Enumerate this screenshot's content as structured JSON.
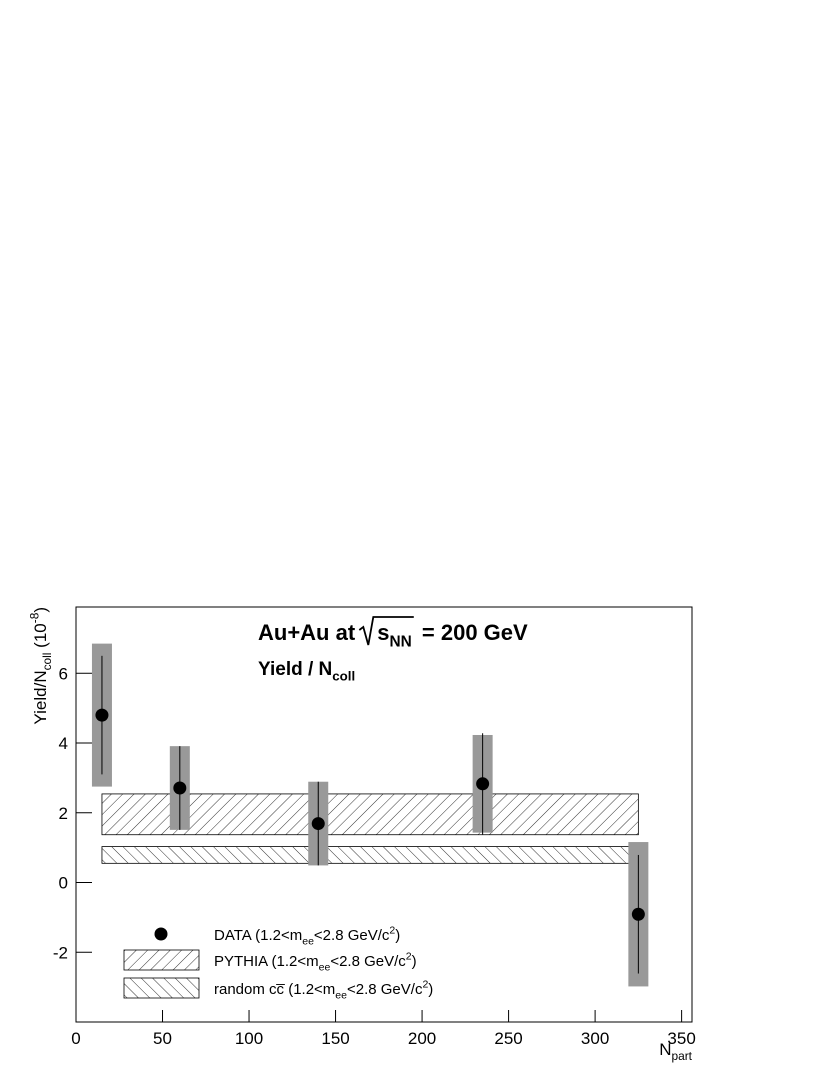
{
  "chart_data": {
    "type": "scatter",
    "title": [
      "Au+Au at ",
      "s",
      "NN",
      " = 200 GeV"
    ],
    "subtitle": [
      "Yield / N",
      "coll"
    ],
    "y_label": [
      "Yield/N",
      "coll",
      " (10",
      "-8",
      ")"
    ],
    "x_label": [
      "N",
      "part"
    ],
    "xlim": [
      0,
      356
    ],
    "ylim": [
      -4,
      7.9
    ],
    "xticks": [
      0,
      50,
      100,
      150,
      200,
      250,
      300,
      350
    ],
    "yticks": [
      -2,
      0,
      2,
      4,
      6
    ],
    "series": [
      {
        "type": "points",
        "name": [
          "DATA (1.2<m",
          "ee",
          "<2.8 GeV/c",
          "2",
          ")"
        ],
        "color": "#000000",
        "sys_color": "#999999",
        "x": [
          15,
          60,
          140,
          235,
          325
        ],
        "values": [
          4.8,
          2.71,
          1.69,
          2.83,
          -0.91
        ],
        "errors": [
          1.7,
          1.2,
          1.2,
          1.45,
          1.7
        ],
        "sys_errors": [
          2.05,
          1.2,
          1.2,
          1.4,
          2.07
        ]
      },
      {
        "type": "band",
        "name": [
          "PYTHIA (1.2<m",
          "ee",
          "<2.8 GeV/c",
          "2",
          ")"
        ],
        "color": "#000000",
        "hatch": "forward",
        "x": [
          15,
          325
        ],
        "range": [
          1.37,
          2.54
        ]
      },
      {
        "type": "band",
        "name": [
          "random cc̅ (1.2<m",
          "ee",
          "<2.8 GeV/c",
          "2",
          ")"
        ],
        "color": "#000000",
        "hatch": "back",
        "x": [
          15,
          325
        ],
        "range": [
          0.55,
          1.03
        ]
      }
    ]
  }
}
